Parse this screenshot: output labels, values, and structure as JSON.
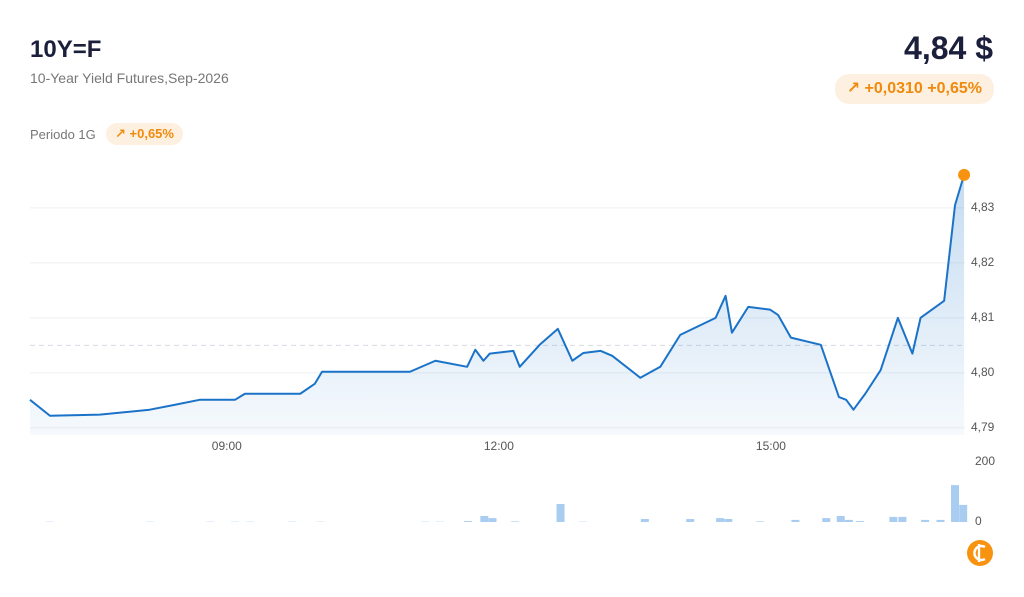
{
  "header": {
    "symbol": "10Y=F",
    "name": "10-Year Yield Futures,Sep-2026",
    "price": "4,84 $",
    "change": "+0,0310",
    "change_pct": "+0,65%"
  },
  "period": {
    "label": "Periodo 1G",
    "change": "+0,65%"
  },
  "chart_data": [
    {
      "type": "line",
      "color": "#1a73c8",
      "marker_color": "#f7930f",
      "grid": true,
      "reference": 4.805,
      "x": [
        6.83,
        7.05,
        7.6,
        8.15,
        8.43,
        8.7,
        9.09,
        9.2,
        9.81,
        9.97,
        10.05,
        11.02,
        11.3,
        11.65,
        11.74,
        11.83,
        11.9,
        12.16,
        12.23,
        12.45,
        12.65,
        12.81,
        12.93,
        13.12,
        13.25,
        13.56,
        13.78,
        14.0,
        14.39,
        14.5,
        14.57,
        14.75,
        14.99,
        15.08,
        15.22,
        15.55,
        15.75,
        15.83,
        15.91,
        16.04,
        16.21,
        16.4,
        16.56,
        16.65,
        16.91,
        17.03,
        17.13
      ],
      "values": [
        4.7951,
        4.7922,
        4.7924,
        4.7933,
        4.7942,
        4.7951,
        4.7951,
        4.7962,
        4.7962,
        4.798,
        4.8002,
        4.8002,
        4.8022,
        4.8011,
        4.8042,
        4.8022,
        4.8035,
        4.804,
        4.8011,
        4.8051,
        4.808,
        4.8022,
        4.8036,
        4.804,
        4.8031,
        4.7991,
        4.8011,
        4.8069,
        4.81,
        4.814,
        4.8073,
        4.812,
        4.8115,
        4.8105,
        4.8064,
        4.8051,
        4.7956,
        4.7951,
        4.7933,
        4.7962,
        4.8005,
        4.81,
        4.8035,
        4.81,
        4.8131,
        4.8305,
        4.836
      ],
      "xlim": [
        6.83,
        17.14
      ],
      "ylim": [
        4.7887,
        4.8387
      ],
      "xticks": [
        {
          "value": 9,
          "label": "09:00"
        },
        {
          "value": 12,
          "label": "12:00"
        },
        {
          "value": 15,
          "label": "15:00"
        }
      ],
      "yticks": [
        {
          "value": 4.79,
          "label": "4,79"
        },
        {
          "value": 4.8,
          "label": "4,80"
        },
        {
          "value": 4.81,
          "label": "4,81"
        },
        {
          "value": 4.82,
          "label": "4,82"
        },
        {
          "value": 4.83,
          "label": "4,83"
        }
      ]
    },
    {
      "type": "bar",
      "color": "#a9cdf0",
      "x": [
        7.05,
        8.15,
        8.82,
        9.09,
        9.26,
        9.72,
        10.03,
        11.19,
        11.35,
        11.66,
        11.84,
        11.93,
        12.18,
        12.68,
        12.93,
        13.61,
        14.11,
        14.44,
        14.53,
        14.88,
        15.27,
        15.61,
        15.77,
        15.86,
        15.98,
        16.35,
        16.45,
        16.7,
        16.87,
        17.03,
        17.12
      ],
      "values": [
        1,
        1,
        1,
        1,
        1,
        1,
        1,
        1,
        1,
        3,
        20,
        13,
        2,
        60,
        1,
        10,
        10,
        13,
        10,
        2,
        7,
        13,
        20,
        7,
        3,
        17,
        17,
        7,
        7,
        123,
        57
      ],
      "xlim": [
        6.83,
        17.14
      ],
      "ylim": [
        0,
        200
      ],
      "yticks": [
        0,
        200
      ]
    }
  ]
}
